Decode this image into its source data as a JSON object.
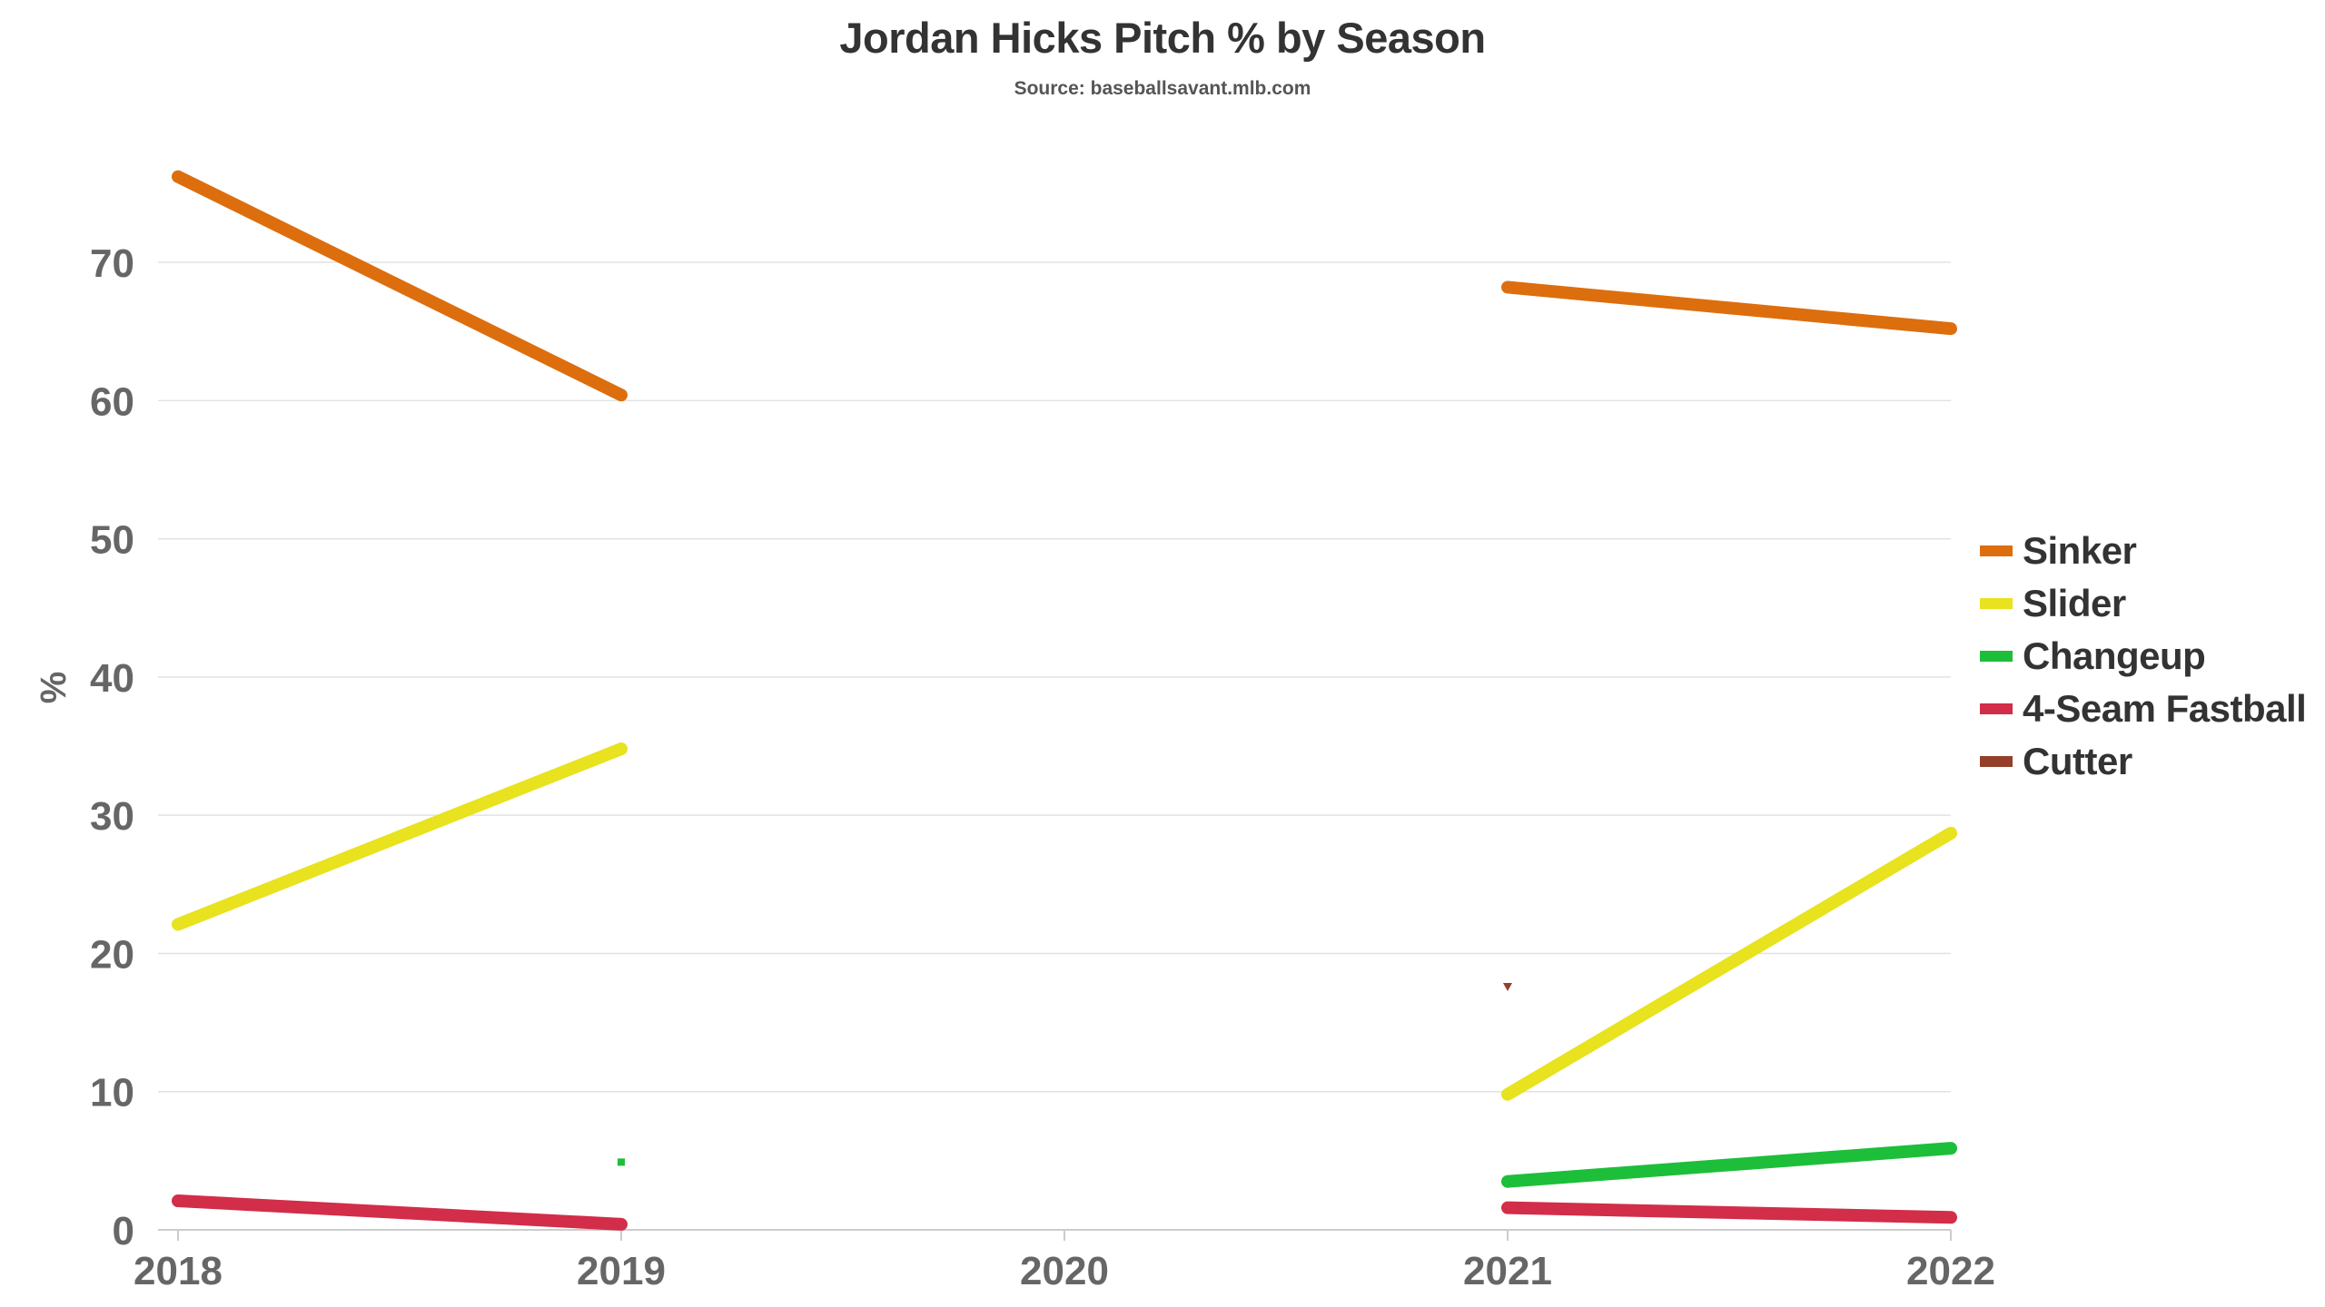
{
  "chart_data": {
    "type": "line",
    "title": "Jordan Hicks Pitch % by Season",
    "subtitle": "Source: baseballsavant.mlb.com",
    "xlabel": "",
    "ylabel": "%",
    "x": [
      2018,
      2019,
      2020,
      2021,
      2022
    ],
    "x_tick_labels": [
      "2018",
      "2019",
      "2020",
      "2021",
      "2022"
    ],
    "y_ticks": [
      0,
      10,
      20,
      30,
      40,
      50,
      60,
      70
    ],
    "ylim": [
      0,
      79
    ],
    "grid": "horizontal",
    "legend_position": "right",
    "series": [
      {
        "name": "Sinker",
        "color": "#DD6E0E",
        "values": [
          76.2,
          60.4,
          null,
          68.2,
          65.2
        ]
      },
      {
        "name": "Slider",
        "color": "#E8E21F",
        "values": [
          22.1,
          34.8,
          null,
          9.8,
          28.7
        ]
      },
      {
        "name": "Changeup",
        "color": "#1DBE3A",
        "values": [
          null,
          4.9,
          null,
          3.5,
          5.9
        ]
      },
      {
        "name": "4-Seam Fastball",
        "color": "#D22D49",
        "values": [
          2.1,
          0.4,
          null,
          1.6,
          0.9
        ]
      },
      {
        "name": "Cutter",
        "color": "#933F2C",
        "values": [
          null,
          null,
          null,
          17.6,
          null
        ]
      }
    ]
  }
}
